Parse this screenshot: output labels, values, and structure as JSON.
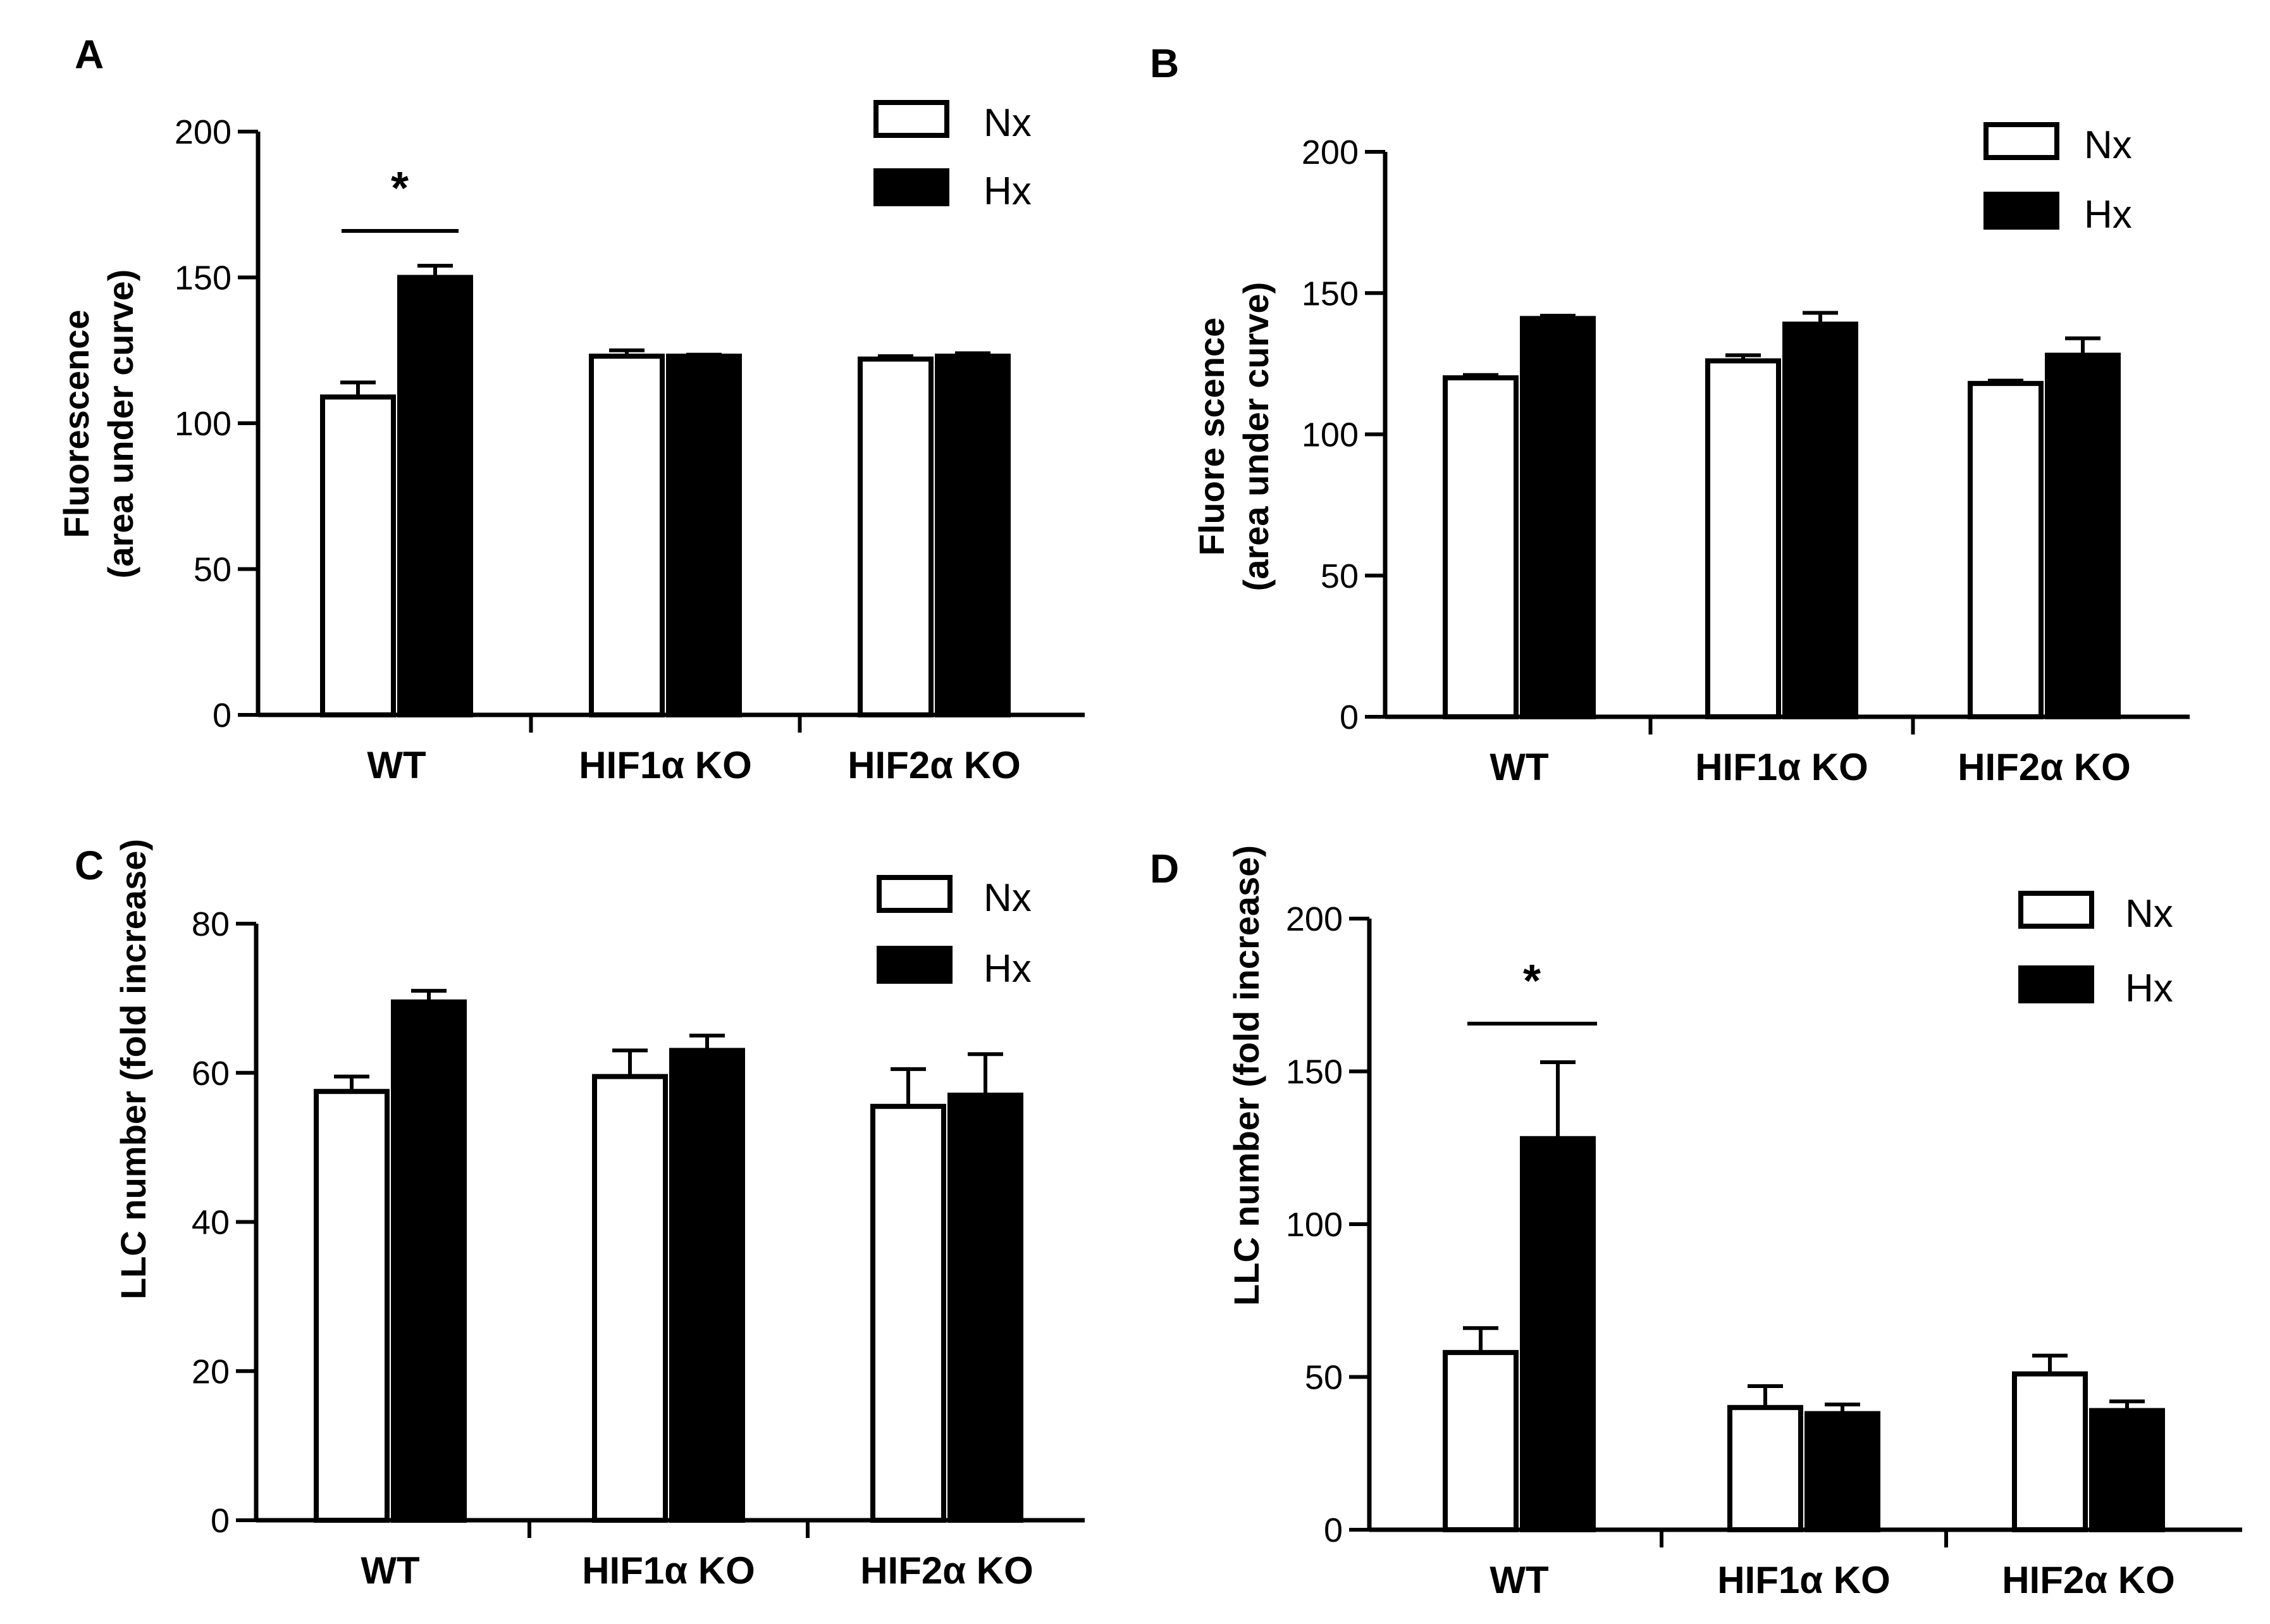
{
  "colors": {
    "Nx": "#ffffff",
    "Hx": "#000000",
    "stroke": "#000000"
  },
  "chart_data": [
    {
      "panel": "A",
      "type": "bar",
      "categories": [
        "WT",
        "HIF1α KO",
        "HIF2α KO"
      ],
      "ylabel_lines": [
        "Fluorescence",
        "(area under curve)"
      ],
      "yticks": [
        0,
        50,
        100,
        150,
        200
      ],
      "ylim": [
        0,
        200
      ],
      "legend": "top-right",
      "series": [
        {
          "name": "Nx",
          "values": [
            109,
            123,
            122
          ],
          "errors": [
            5,
            2,
            1
          ]
        },
        {
          "name": "Hx",
          "values": [
            150,
            123,
            123
          ],
          "errors": [
            4,
            0.5,
            1
          ]
        }
      ],
      "significance": [
        {
          "category": "WT",
          "label": "*"
        }
      ]
    },
    {
      "panel": "B",
      "type": "bar",
      "categories": [
        "WT",
        "HIF1α KO",
        "HIF2α KO"
      ],
      "ylabel_lines": [
        "Fluore scence",
        "(area under curve)"
      ],
      "yticks": [
        0,
        50,
        100,
        150,
        200
      ],
      "ylim": [
        0,
        200
      ],
      "legend": "top-right",
      "series": [
        {
          "name": "Nx",
          "values": [
            120,
            126,
            118
          ],
          "errors": [
            1,
            2,
            1
          ]
        },
        {
          "name": "Hx",
          "values": [
            141,
            139,
            128
          ],
          "errors": [
            1,
            4,
            6
          ]
        }
      ],
      "significance": []
    },
    {
      "panel": "C",
      "type": "bar",
      "categories": [
        "WT",
        "HIF1α KO",
        "HIF2α KO"
      ],
      "ylabel_lines": [
        "LLC number (fold increase)"
      ],
      "yticks": [
        0,
        20,
        40,
        60,
        80
      ],
      "ylim": [
        0,
        80
      ],
      "legend": "top-right",
      "series": [
        {
          "name": "Nx",
          "values": [
            57.5,
            59.5,
            55.5
          ],
          "errors": [
            2,
            3.5,
            5
          ]
        },
        {
          "name": "Hx",
          "values": [
            69.5,
            63,
            57
          ],
          "errors": [
            1.5,
            2,
            5.5
          ]
        }
      ],
      "significance": []
    },
    {
      "panel": "D",
      "type": "bar",
      "categories": [
        "WT",
        "HIF1α KO",
        "HIF2α KO"
      ],
      "ylabel_lines": [
        "LLC number (fold increase)"
      ],
      "yticks": [
        0,
        50,
        100,
        150,
        200
      ],
      "ylim": [
        0,
        200
      ],
      "legend": "top-right",
      "series": [
        {
          "name": "Nx",
          "values": [
            58,
            40,
            51
          ],
          "errors": [
            8,
            7,
            6
          ]
        },
        {
          "name": "Hx",
          "values": [
            128,
            38,
            39
          ],
          "errors": [
            25,
            3,
            3
          ]
        }
      ],
      "significance": [
        {
          "category": "WT",
          "label": "*"
        }
      ]
    }
  ]
}
